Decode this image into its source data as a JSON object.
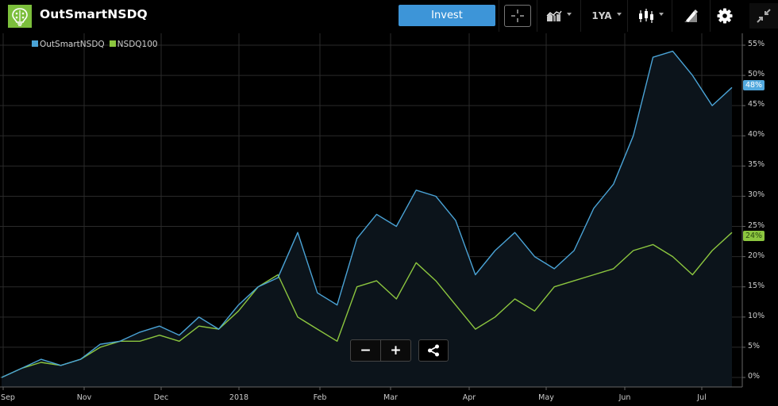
{
  "header": {
    "app_title": "OutSmartNSDQ",
    "logo_icon": "brain-lightbulb-icon",
    "invest_label": "Invest",
    "range_label": "1YA",
    "toolbar_icons": [
      "crosshair-icon",
      "chart-type-icon",
      "range-selector",
      "candlestick-icon",
      "drawing-tools-icon",
      "gear-icon",
      "collapse-icon"
    ]
  },
  "colors": {
    "accent_blue": "#3d95d8",
    "series_outsmart": "#4aa3d6",
    "series_nsdq": "#8cc63f",
    "logo_green": "#7cbf3c",
    "area_fill": "#0c141b",
    "grid": "#2a2a2a",
    "background": "#000000"
  },
  "legend": [
    {
      "label": "OutSmartNSDQ",
      "color": "#4aa3d6"
    },
    {
      "label": "NSDQ100",
      "color": "#8cc63f"
    }
  ],
  "badges": {
    "outsmart_last": "48%",
    "nsdq_last": "24%"
  },
  "controls": {
    "zoom_out": "−",
    "zoom_in": "+",
    "share_icon": "share-icon"
  },
  "chart_data": {
    "type": "line",
    "title": "",
    "xlabel": "",
    "ylabel": "",
    "ylim": [
      0,
      55
    ],
    "y_ticks": [
      "0%",
      "5%",
      "10%",
      "15%",
      "20%",
      "25%",
      "30%",
      "35%",
      "40%",
      "45%",
      "50%",
      "55%"
    ],
    "x_ticks": [
      "Sep",
      "Nov",
      "Dec",
      "2018",
      "Feb",
      "Mar",
      "Apr",
      "May",
      "Jun",
      "Jul"
    ],
    "grid": true,
    "legend_position": "top-left",
    "x": [
      "Sep",
      "Sep",
      "Oct",
      "Oct",
      "Oct",
      "Nov",
      "Nov",
      "Nov",
      "Dec",
      "Dec",
      "Dec",
      "Jan",
      "Jan",
      "Jan",
      "Jan",
      "Feb",
      "Feb",
      "Feb",
      "Feb",
      "Mar",
      "Mar",
      "Mar",
      "Mar",
      "Apr",
      "Apr",
      "Apr",
      "Apr",
      "May",
      "May",
      "May",
      "May",
      "Jun",
      "Jun",
      "Jun",
      "Jun",
      "Jul",
      "Jul",
      "Jul"
    ],
    "series": [
      {
        "name": "OutSmartNSDQ",
        "color": "#4aa3d6",
        "values": [
          0,
          1.5,
          3,
          2,
          3,
          5.5,
          6,
          7.5,
          8.5,
          7,
          10,
          8,
          12,
          15,
          16.5,
          24,
          14,
          12,
          23,
          27,
          25,
          31,
          30,
          26,
          17,
          21,
          24,
          20,
          18,
          21,
          28,
          32,
          40,
          53,
          54,
          50,
          45,
          48
        ]
      },
      {
        "name": "NSDQ100",
        "color": "#8cc63f",
        "values": [
          0,
          1.5,
          2.5,
          2,
          3,
          5,
          6,
          6,
          7,
          6,
          8.5,
          8,
          11,
          15,
          17,
          10,
          8,
          6,
          15,
          16,
          13,
          19,
          16,
          12,
          8,
          10,
          13,
          11,
          15,
          16,
          17,
          18,
          21,
          22,
          20,
          17,
          21,
          24
        ]
      }
    ]
  }
}
